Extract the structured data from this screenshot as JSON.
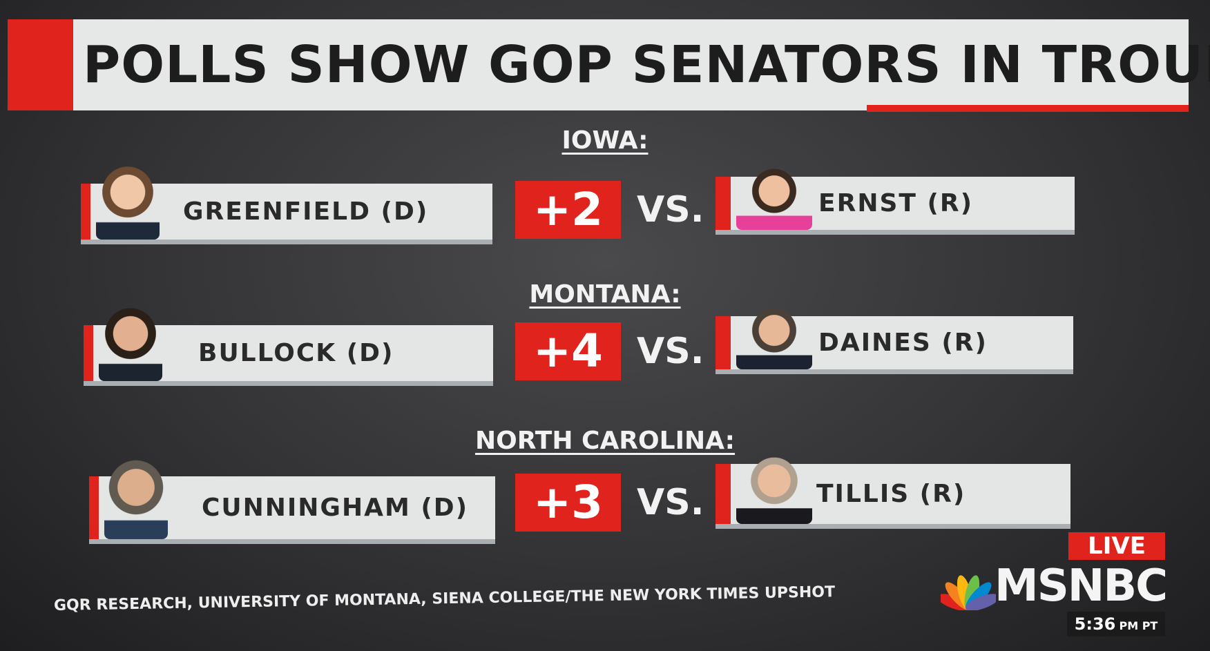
{
  "title": "POLLS SHOW GOP SENATORS IN TROUBLE",
  "races": [
    {
      "state": "IOWA:",
      "dem": "GREENFIELD (D)",
      "margin": "+2",
      "vs": "VS.",
      "rep": "ERNST (R)"
    },
    {
      "state": "MONTANA:",
      "dem": "BULLOCK (D)",
      "margin": "+4",
      "vs": "VS.",
      "rep": "DAINES (R)"
    },
    {
      "state": "NORTH CAROLINA:",
      "dem": "CUNNINGHAM (D)",
      "margin": "+3",
      "vs": "VS.",
      "rep": "TILLIS (R)"
    }
  ],
  "source": "GQR RESEARCH, UNIVERSITY OF MONTANA, SIENA COLLEGE/THE NEW YORK TIMES UPSHOT",
  "live": "LIVE",
  "network": "MSNBC",
  "time": "5:36",
  "time_suffix": "PM PT"
}
